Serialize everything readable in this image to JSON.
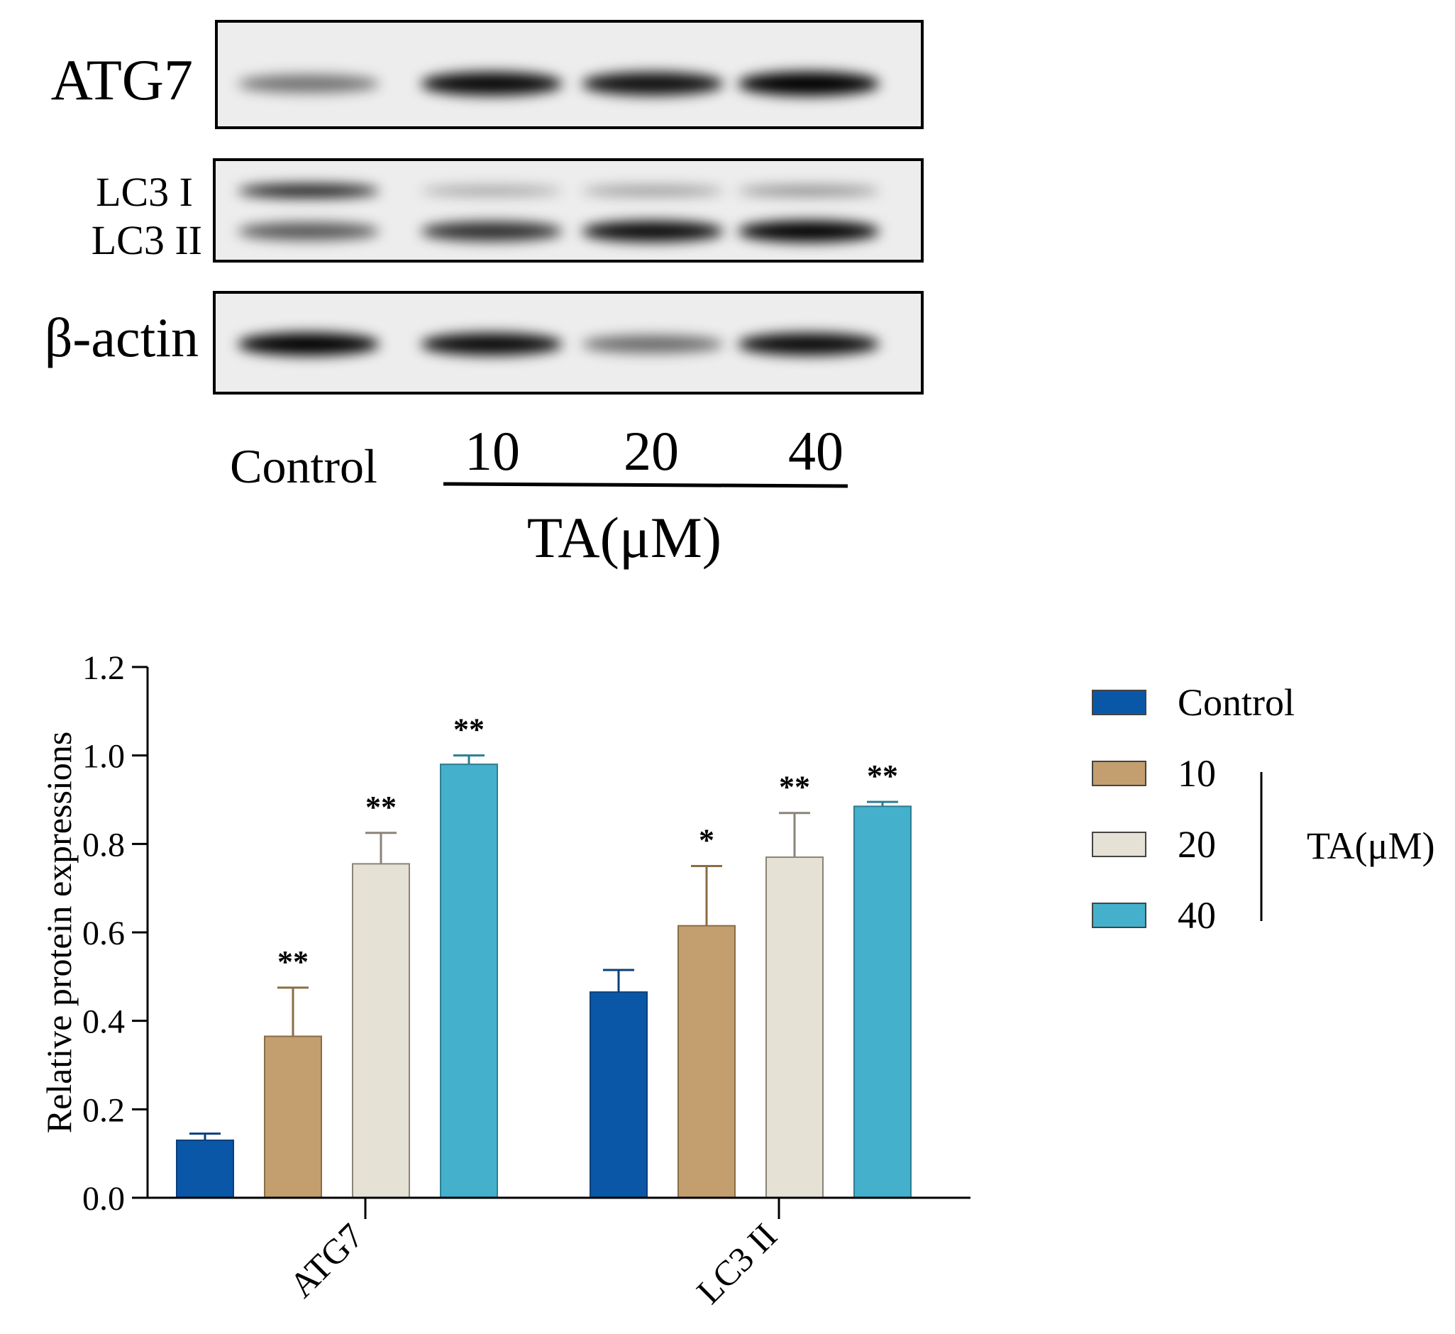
{
  "blot": {
    "panels": [
      {
        "name": "ATG7",
        "labels": [
          "ATG7"
        ],
        "bands": [
          [
            0.45,
            0.95,
            0.92,
            1.0
          ]
        ]
      },
      {
        "name": "LC3",
        "labels": [
          "LC3 I",
          "LC3 II"
        ],
        "bands": [
          [
            0.9,
            0.25,
            0.3,
            0.35
          ],
          [
            0.6,
            0.8,
            0.95,
            1.0
          ]
        ]
      },
      {
        "name": "beta-actin",
        "labels": [
          "β-actin"
        ],
        "bands": [
          [
            1.0,
            0.95,
            0.5,
            0.95
          ]
        ]
      }
    ],
    "lane_labels": [
      "Control",
      "10",
      "20",
      "40"
    ],
    "treatment_label": "TA(μM)"
  },
  "chart_data": {
    "type": "bar",
    "categories": [
      "ATG7",
      "LC3 II"
    ],
    "ylabel": "Relative protein expressions",
    "xlabel": "",
    "ylim": [
      0,
      1.2
    ],
    "yticks": [
      "0.0",
      "0.2",
      "0.4",
      "0.6",
      "0.8",
      "1.0",
      "1.2"
    ],
    "series": [
      {
        "name": "Control",
        "color": "#0a57a8",
        "values": [
          0.13,
          0.465
        ],
        "errors": [
          0.015,
          0.05
        ],
        "sig": [
          "",
          ""
        ]
      },
      {
        "name": "10",
        "color": "#c39e6e",
        "values": [
          0.365,
          0.615
        ],
        "errors": [
          0.11,
          0.135
        ],
        "sig": [
          "**",
          "*"
        ]
      },
      {
        "name": "20",
        "color": "#e6e1d5",
        "values": [
          0.755,
          0.77
        ],
        "errors": [
          0.07,
          0.1
        ],
        "sig": [
          "**",
          "**"
        ]
      },
      {
        "name": "40",
        "color": "#44b0cc",
        "values": [
          0.98,
          0.885
        ],
        "errors": [
          0.02,
          0.01
        ],
        "sig": [
          "**",
          "**"
        ]
      }
    ],
    "legend": {
      "position": "right",
      "entries": [
        "Control",
        "10",
        "20",
        "40"
      ],
      "group_label": "TA(μM)"
    }
  }
}
